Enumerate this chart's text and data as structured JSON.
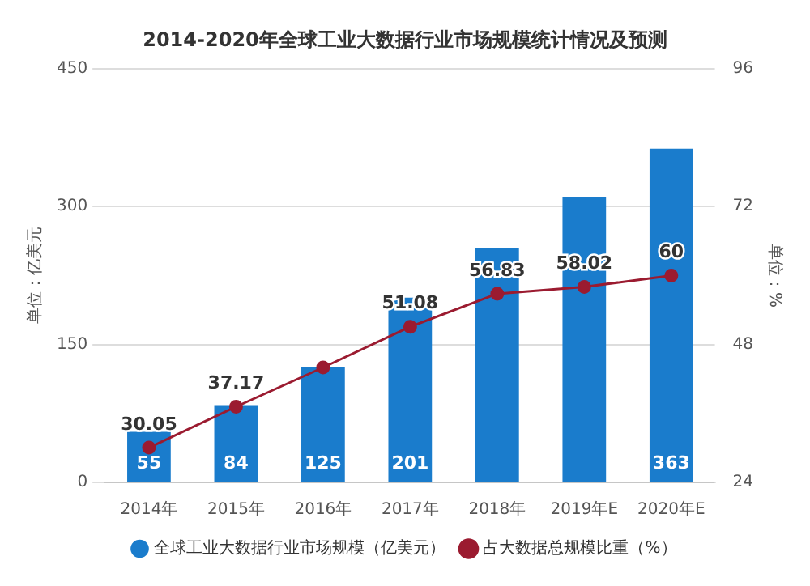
{
  "chart_data": {
    "type": "bar",
    "title": "2014-2020年全球工业大数据行业市场规模统计情况及预测",
    "ylabel": "单位：亿美元",
    "y2label": "单位：%",
    "categories": [
      "2014年",
      "2015年",
      "2016年",
      "2017年",
      "2018年",
      "2019年E",
      "2020年E"
    ],
    "series": [
      {
        "name": "全球工业大数据行业市场规模（亿美元）",
        "color": "#1a7ccc",
        "values": [
          55,
          84,
          125,
          201,
          255,
          310,
          363
        ],
        "value_labels": [
          "55",
          "84",
          "125",
          "201",
          null,
          null,
          "363"
        ]
      },
      {
        "name": "占大数据总规模比重（%）",
        "type": "line",
        "axis": "y2",
        "color": "#9b1b30",
        "values": [
          30.05,
          37.17,
          44,
          51.08,
          56.83,
          58.02,
          60
        ],
        "value_labels": [
          "30.05",
          "37.17",
          null,
          "51.08",
          "56.83",
          "58.02",
          "60"
        ],
        "marker": "circle"
      }
    ],
    "ylim": [
      0,
      450
    ],
    "yticks": [
      0,
      150,
      300,
      450
    ],
    "y2lim": [
      24,
      96
    ],
    "y2ticks": [
      24,
      48,
      72,
      96
    ],
    "grid": "y",
    "legend": "bottom"
  }
}
